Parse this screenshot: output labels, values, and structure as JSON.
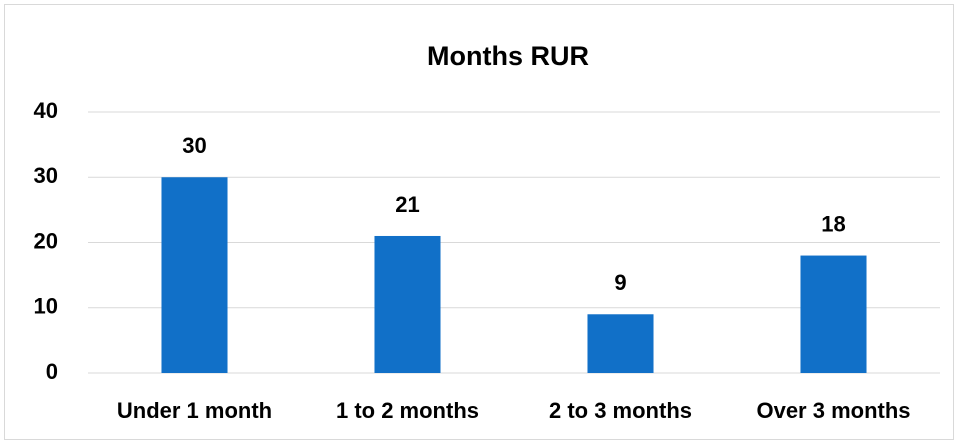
{
  "chart_data": {
    "type": "bar",
    "title": "Months RUR",
    "categories": [
      "Under 1 month",
      "1 to 2 months",
      "2 to 3 months",
      "Over 3 months"
    ],
    "values": [
      30,
      21,
      9,
      18
    ],
    "color": "#1170c8",
    "ylim": [
      0,
      40
    ],
    "yticks": [
      0,
      10,
      20,
      30,
      40
    ],
    "grid": true,
    "data_labels": true
  }
}
